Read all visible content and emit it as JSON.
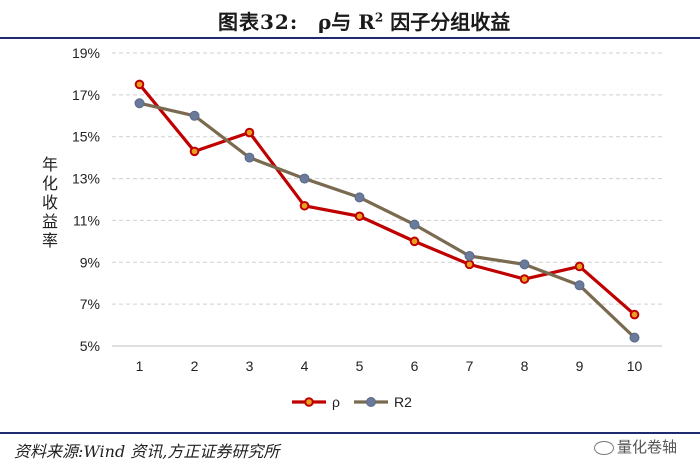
{
  "header": {
    "figure_label": "图表32:",
    "title_main": "ρ与 R",
    "title_sup": "2",
    "title_tail": " 因子分组收益"
  },
  "footer": {
    "source": "资料来源:Wind 资讯,方正证券研究所",
    "watermark": "量化卷轴"
  },
  "chart_data": {
    "type": "line",
    "ylabel": "年化收益率",
    "xlabel": "",
    "categories": [
      "1",
      "2",
      "3",
      "4",
      "5",
      "6",
      "7",
      "8",
      "9",
      "10"
    ],
    "ylim": [
      5,
      19
    ],
    "yticks": [
      "5%",
      "7%",
      "9%",
      "11%",
      "13%",
      "15%",
      "17%",
      "19%"
    ],
    "ytick_values": [
      5,
      7,
      9,
      11,
      13,
      15,
      17,
      19
    ],
    "grid": "horizontal dashed",
    "legend_placement": "bottom-center",
    "series": [
      {
        "name": "ρ",
        "color": "#c00000",
        "values": [
          17.5,
          14.3,
          15.2,
          11.7,
          11.2,
          10.0,
          8.9,
          8.2,
          8.8,
          6.5
        ]
      },
      {
        "name": "R2",
        "color": "#7a6a4f",
        "values": [
          16.6,
          16.0,
          14.0,
          13.0,
          12.1,
          10.8,
          9.3,
          8.9,
          7.9,
          5.4
        ]
      }
    ]
  }
}
